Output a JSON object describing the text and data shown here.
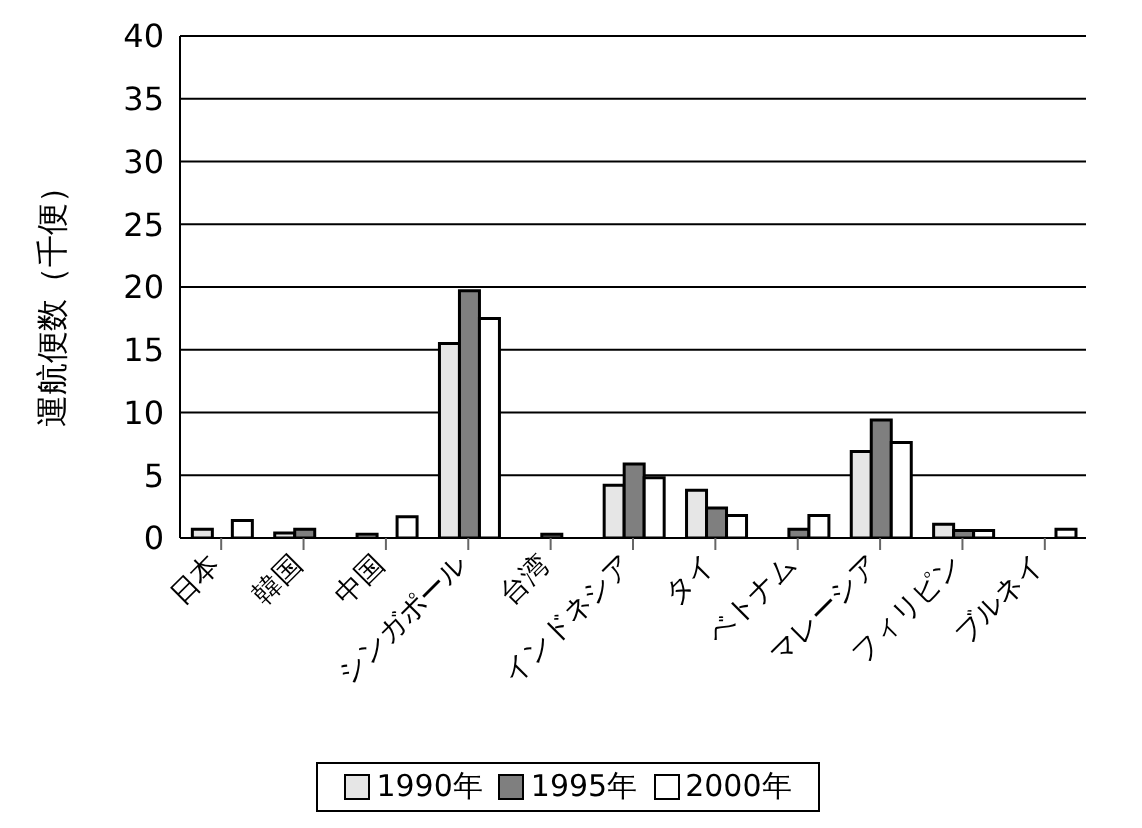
{
  "chart_data": {
    "type": "bar",
    "ylabel": "運航便数（千便）",
    "categories": [
      "日本",
      "韓国",
      "中国",
      "シンガポール",
      "台湾",
      "インドネシア",
      "タイ",
      "ベトナム",
      "マレーシア",
      "フィリピン",
      "ブルネイ"
    ],
    "series": [
      {
        "name": "1990年",
        "color": "#e6e6e6",
        "values": [
          0.7,
          0.4,
          0.3,
          15.5,
          null,
          4.2,
          3.8,
          null,
          6.9,
          1.1,
          null
        ]
      },
      {
        "name": "1995年",
        "color": "#7f7f7f",
        "values": [
          null,
          0.7,
          null,
          19.7,
          0.3,
          5.9,
          2.4,
          0.7,
          9.4,
          0.6,
          null
        ]
      },
      {
        "name": "2000年",
        "color": "#ffffff",
        "values": [
          1.4,
          null,
          1.7,
          17.5,
          null,
          4.8,
          1.8,
          1.8,
          7.6,
          0.6,
          0.7
        ]
      }
    ],
    "ylim": [
      0,
      40
    ],
    "yticks": [
      0,
      5,
      10,
      15,
      20,
      25,
      30,
      35,
      40
    ],
    "grid": "y",
    "legend": "bottom"
  }
}
